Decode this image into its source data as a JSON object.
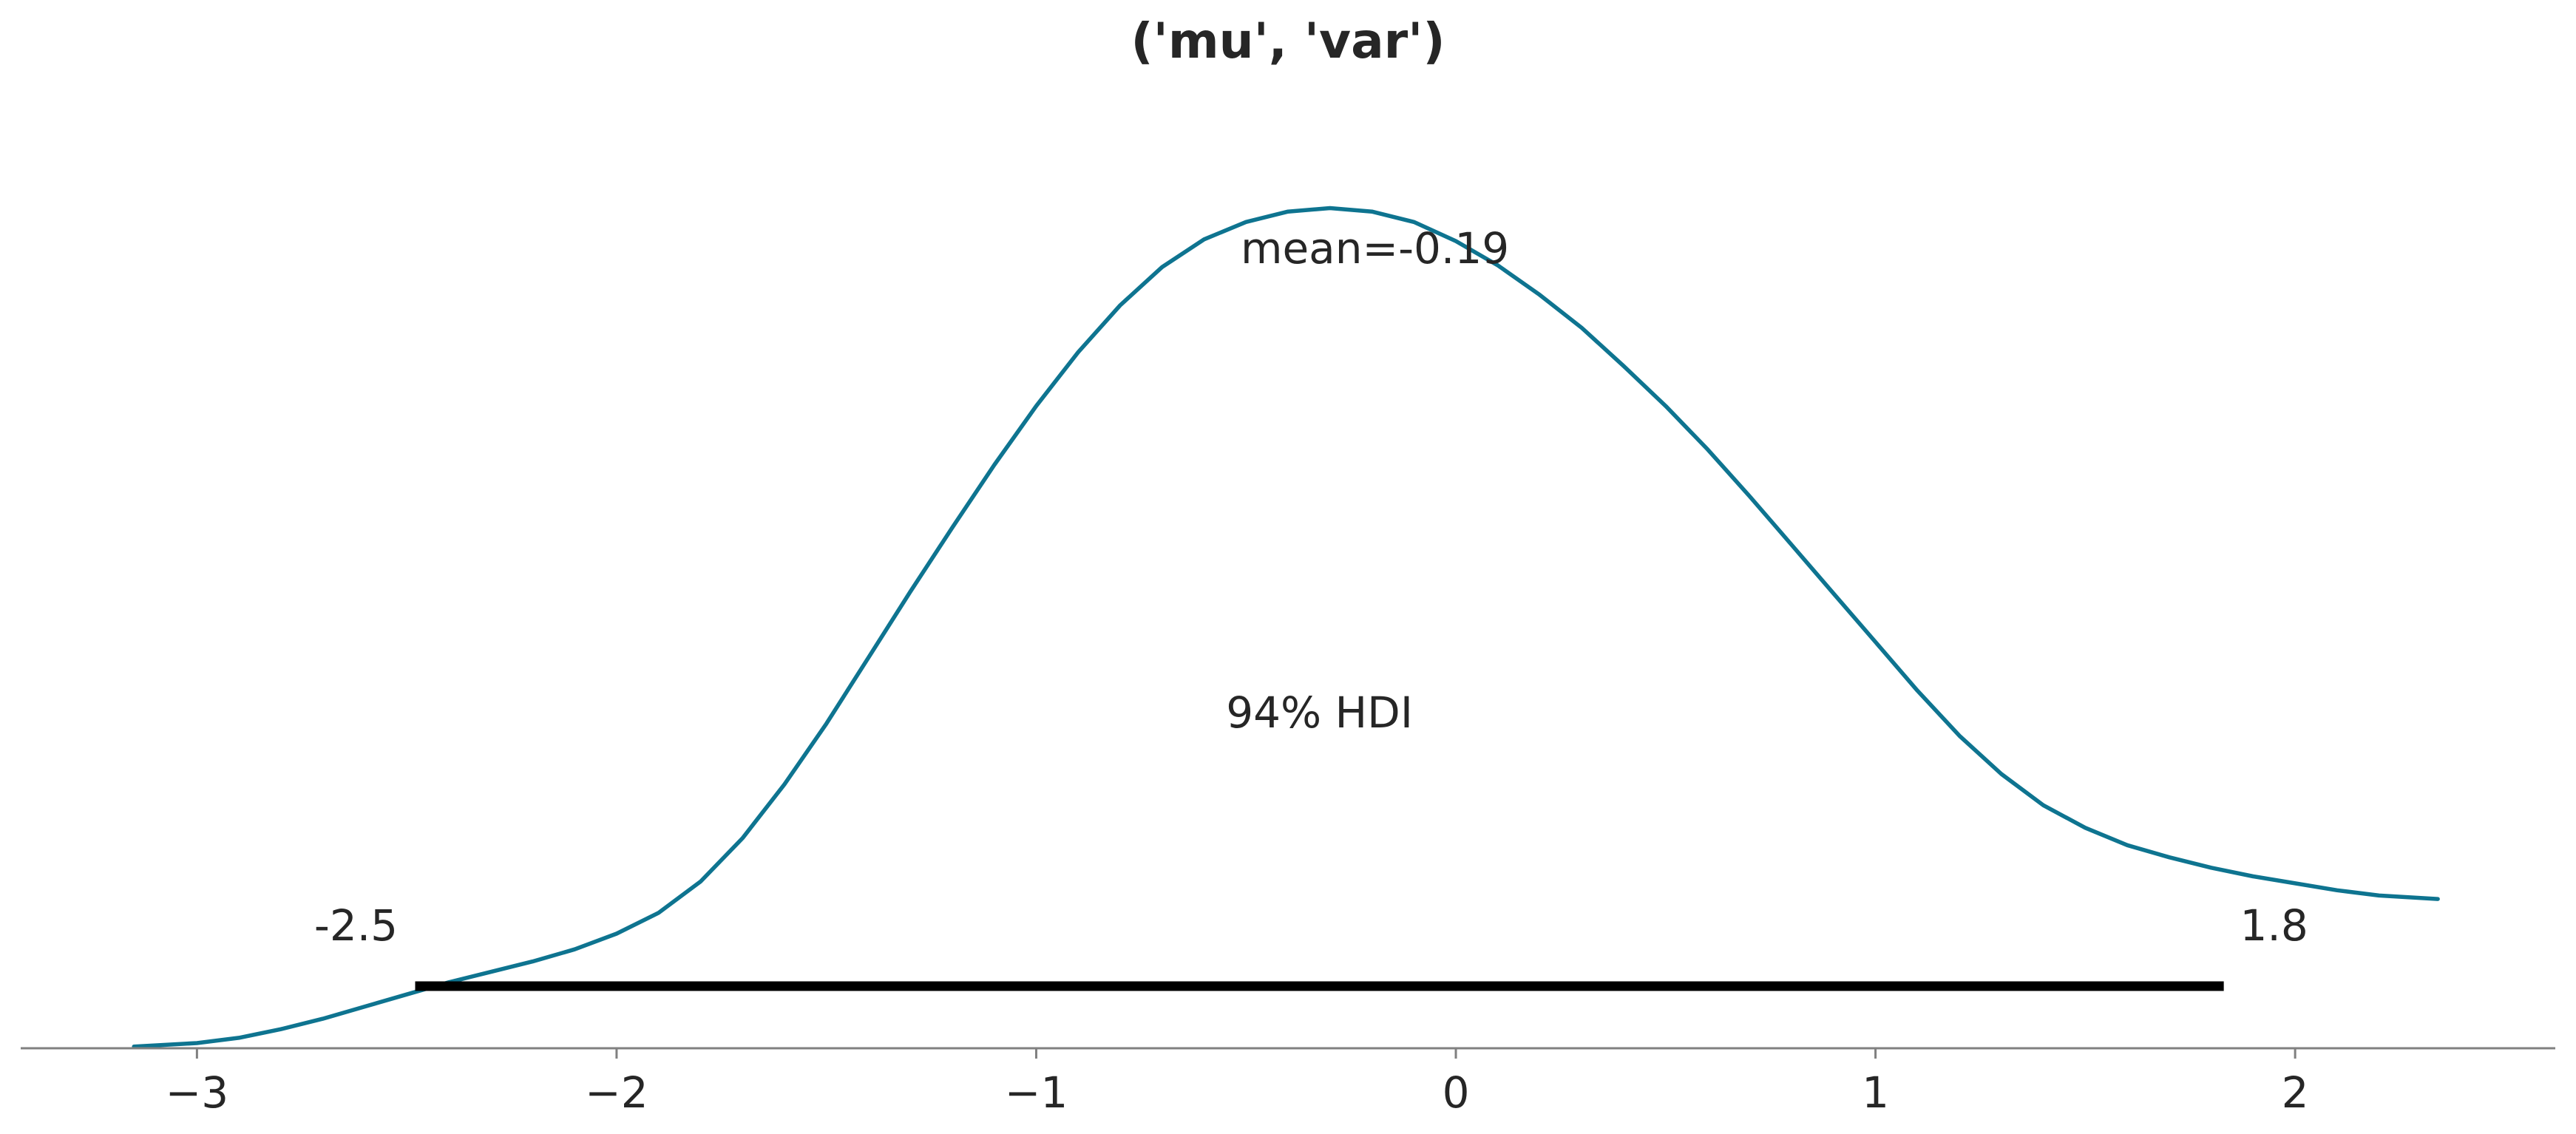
{
  "chart_data": {
    "type": "line",
    "title": "('mu', 'var')",
    "xlabel": "",
    "ylabel": "",
    "xlim": [
      -3.42,
      2.62
    ],
    "ylim": [
      0,
      0.54
    ],
    "grid": false,
    "x_ticks": [
      -3,
      -2,
      -1,
      0,
      1,
      2
    ],
    "x_tick_labels": [
      "−3",
      "−2",
      "−1",
      "0",
      "1",
      "2"
    ],
    "series": [
      {
        "color": "#0e7490",
        "x": [
          -3.15,
          -3.0,
          -2.9,
          -2.8,
          -2.7,
          -2.6,
          -2.5,
          -2.4,
          -2.3,
          -2.2,
          -2.1,
          -2.0,
          -1.9,
          -1.8,
          -1.7,
          -1.6,
          -1.5,
          -1.4,
          -1.3,
          -1.2,
          -1.1,
          -1.0,
          -0.9,
          -0.8,
          -0.7,
          -0.6,
          -0.5,
          -0.4,
          -0.3,
          -0.2,
          -0.1,
          0.0,
          0.1,
          0.2,
          0.3,
          0.4,
          0.5,
          0.6,
          0.7,
          0.8,
          0.9,
          1.0,
          1.1,
          1.2,
          1.3,
          1.4,
          1.5,
          1.6,
          1.7,
          1.8,
          1.9,
          2.0,
          2.1,
          2.2,
          2.34
        ],
        "y": [
          0.001,
          0.003,
          0.006,
          0.011,
          0.017,
          0.024,
          0.031,
          0.038,
          0.044,
          0.05,
          0.057,
          0.066,
          0.078,
          0.096,
          0.121,
          0.152,
          0.187,
          0.225,
          0.263,
          0.3,
          0.336,
          0.37,
          0.401,
          0.428,
          0.45,
          0.466,
          0.476,
          0.482,
          0.484,
          0.482,
          0.476,
          0.465,
          0.451,
          0.434,
          0.415,
          0.393,
          0.37,
          0.345,
          0.318,
          0.29,
          0.262,
          0.234,
          0.206,
          0.18,
          0.158,
          0.14,
          0.127,
          0.117,
          0.11,
          0.104,
          0.099,
          0.095,
          0.091,
          0.088,
          0.086
        ]
      }
    ],
    "mean_label": "mean=-0.19",
    "hdi": {
      "label": "94% HDI",
      "low": -2.48,
      "high": 1.83,
      "low_label": "-2.5",
      "high_label": "1.8",
      "color": "#000000"
    }
  }
}
